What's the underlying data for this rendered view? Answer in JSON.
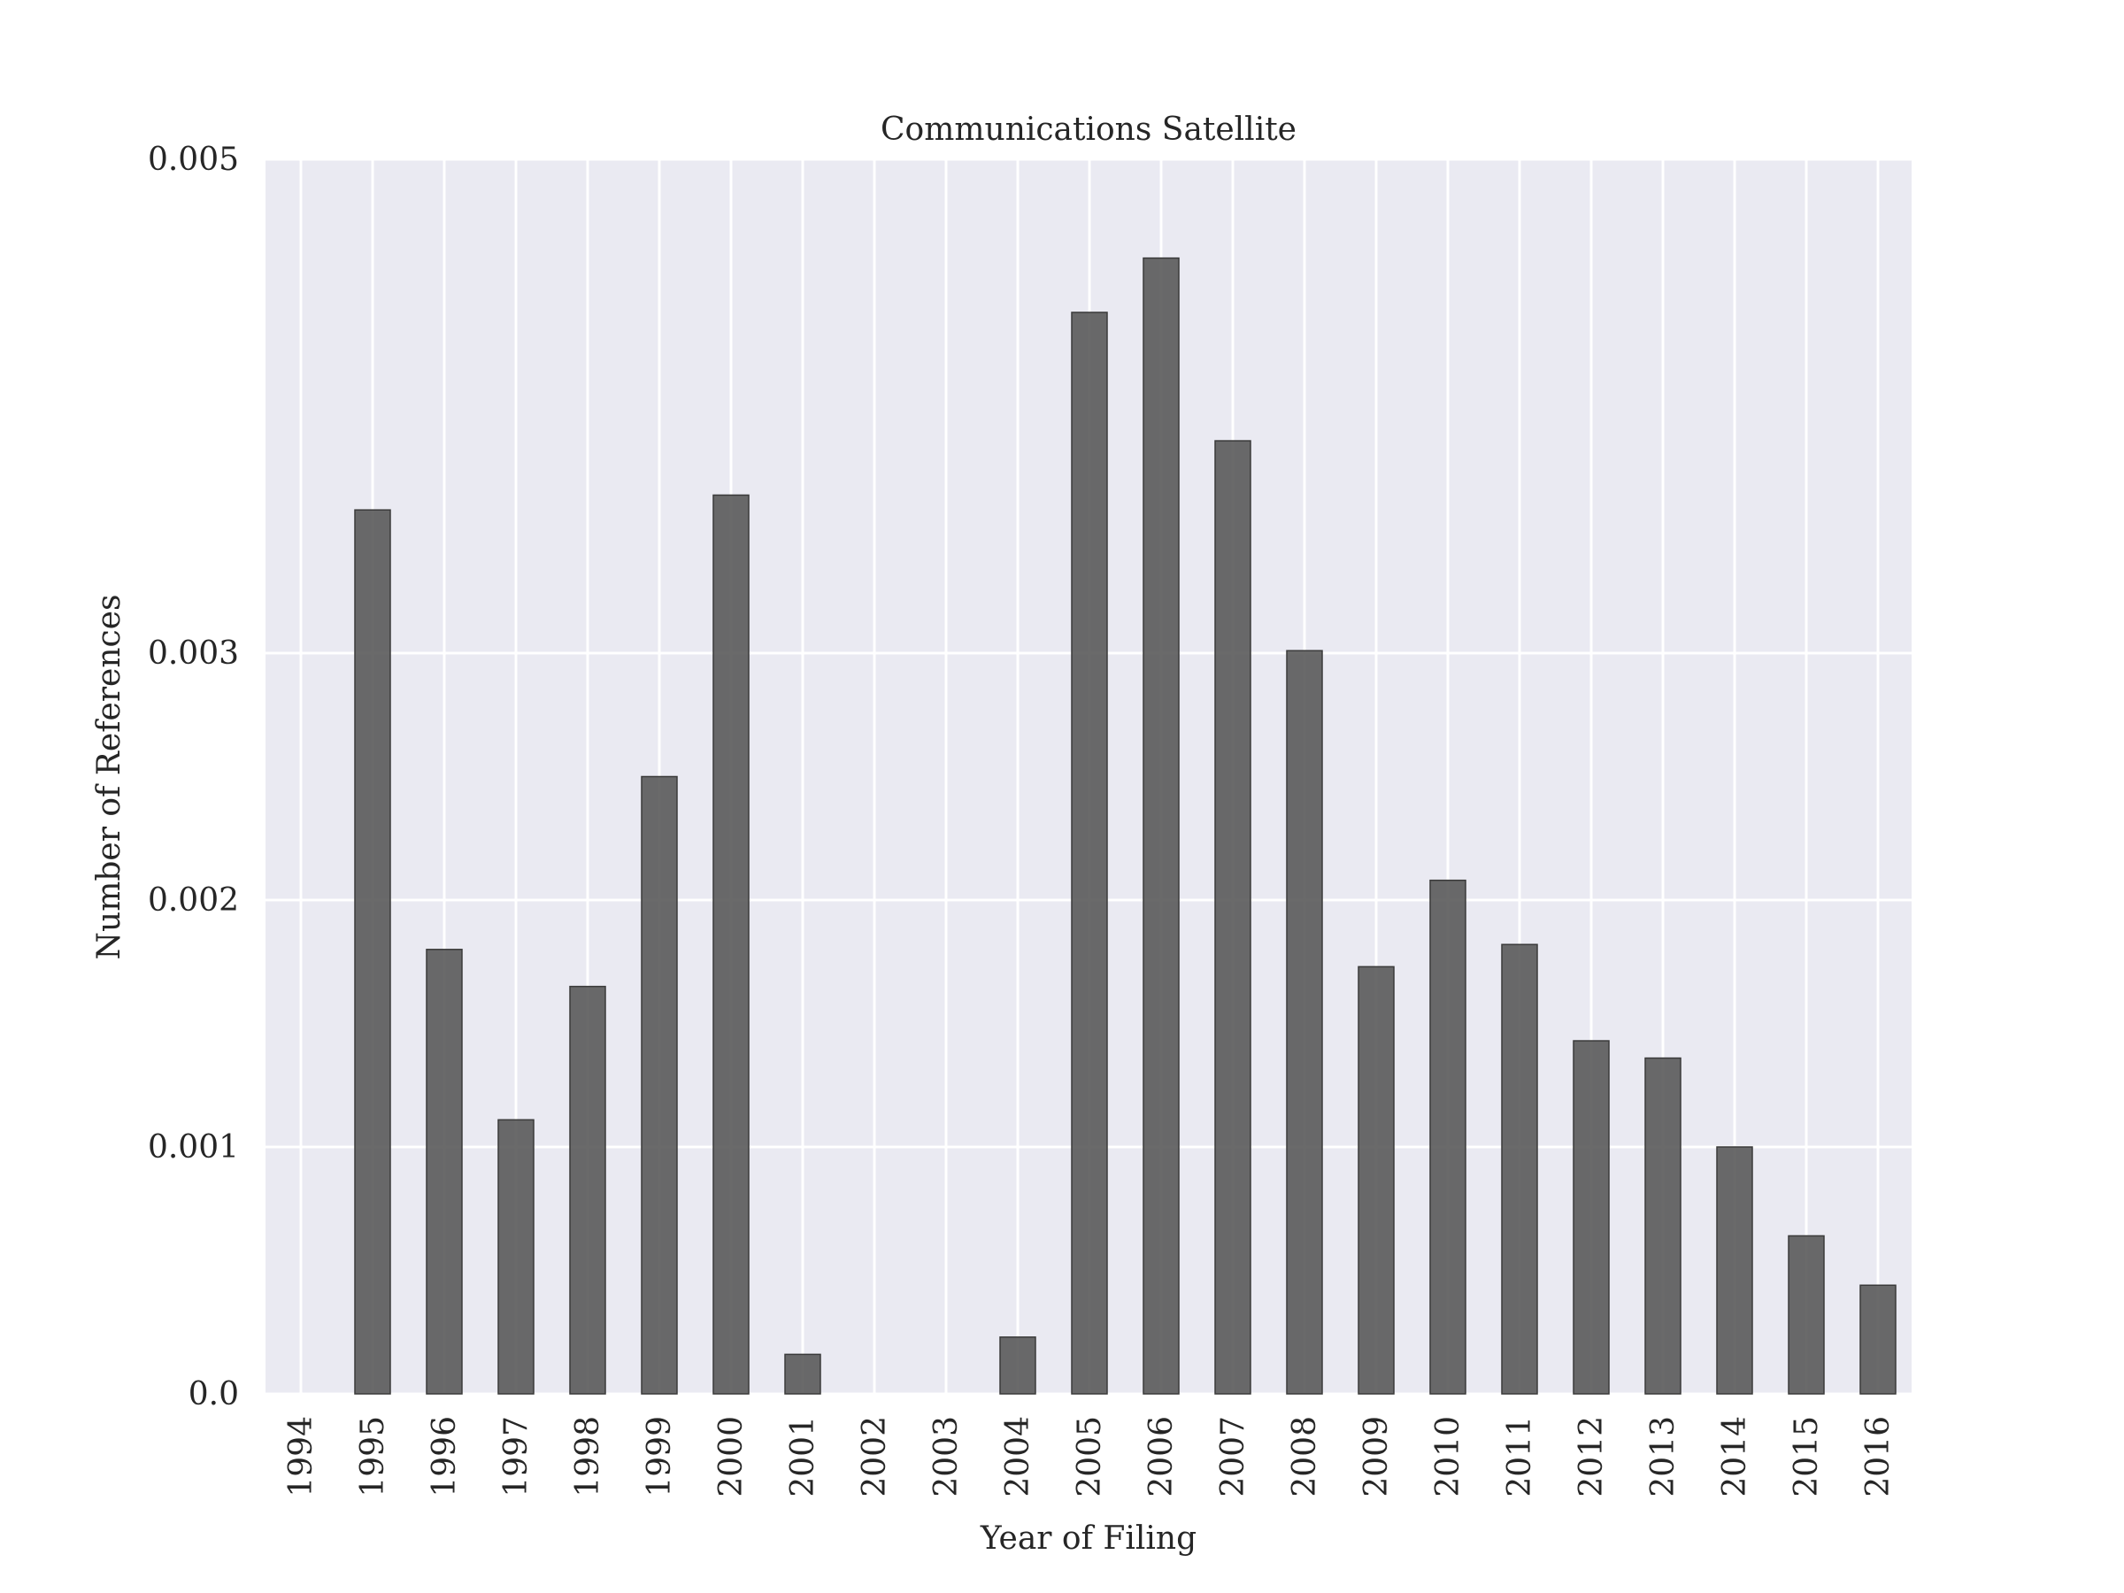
{
  "chart_data": {
    "type": "bar",
    "title": "Communications Satellite",
    "xlabel": "Year of Filing",
    "ylabel": "Number of References",
    "categories": [
      "1994",
      "1995",
      "1996",
      "1997",
      "1998",
      "1999",
      "2000",
      "2001",
      "2002",
      "2003",
      "2004",
      "2005",
      "2006",
      "2007",
      "2008",
      "2009",
      "2010",
      "2011",
      "2012",
      "2013",
      "2014",
      "2015",
      "2016"
    ],
    "values": [
      0.0,
      0.00358,
      0.0018,
      0.00111,
      0.00165,
      0.0025,
      0.00364,
      0.00016,
      0.0,
      0.0,
      0.00023,
      0.00438,
      0.0046,
      0.00386,
      0.00301,
      0.00173,
      0.00208,
      0.00182,
      0.00143,
      0.00136,
      0.001,
      0.00064,
      0.00044
    ],
    "yticks": [
      0.0,
      0.001,
      0.002,
      0.003,
      0.005
    ],
    "ytick_labels": [
      "0.0",
      "0.001",
      "0.002",
      "0.003",
      "0.005"
    ],
    "ylim": [
      0,
      0.005
    ],
    "grid": true,
    "colors": {
      "bar": "#555555",
      "background": "#eaeaf2",
      "grid": "#ffffff"
    }
  }
}
